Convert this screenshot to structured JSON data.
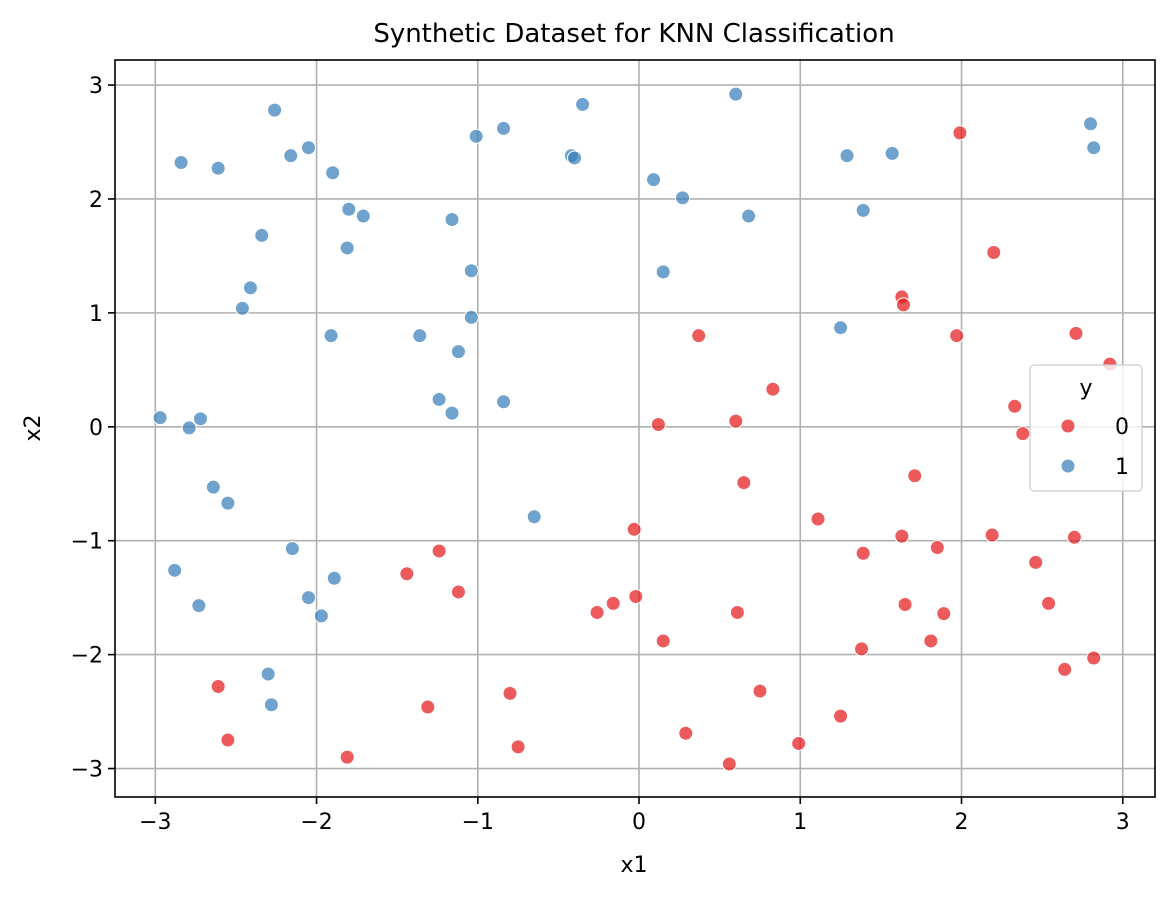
{
  "chart_data": {
    "type": "scatter",
    "title": "Synthetic Dataset for KNN Classification",
    "xlabel": "x1",
    "ylabel": "x2",
    "xlim": [
      -3.25,
      3.2
    ],
    "ylim": [
      -3.25,
      3.22
    ],
    "xticks": [
      -3,
      -2,
      -1,
      0,
      1,
      2,
      3
    ],
    "yticks": [
      -3,
      -2,
      -1,
      0,
      1,
      2,
      3
    ],
    "grid": true,
    "legend": {
      "title": "y",
      "placement": "right"
    },
    "series": [
      {
        "name": "0",
        "color": "#e41a1c",
        "points": [
          [
            1.99,
            2.58
          ],
          [
            2.2,
            1.53
          ],
          [
            1.63,
            1.14
          ],
          [
            1.64,
            1.07
          ],
          [
            2.71,
            0.82
          ],
          [
            1.97,
            0.8
          ],
          [
            0.37,
            0.8
          ],
          [
            2.92,
            0.55
          ],
          [
            0.83,
            0.33
          ],
          [
            2.33,
            0.18
          ],
          [
            2.38,
            -0.06
          ],
          [
            0.12,
            0.02
          ],
          [
            0.6,
            0.05
          ],
          [
            1.71,
            -0.43
          ],
          [
            0.65,
            -0.49
          ],
          [
            1.11,
            -0.81
          ],
          [
            2.19,
            -0.95
          ],
          [
            1.63,
            -0.96
          ],
          [
            2.7,
            -0.97
          ],
          [
            -0.03,
            -0.9
          ],
          [
            1.85,
            -1.06
          ],
          [
            1.39,
            -1.11
          ],
          [
            -1.24,
            -1.09
          ],
          [
            2.46,
            -1.19
          ],
          [
            -1.44,
            -1.29
          ],
          [
            -1.12,
            -1.45
          ],
          [
            2.54,
            -1.55
          ],
          [
            -0.02,
            -1.49
          ],
          [
            -0.16,
            -1.55
          ],
          [
            1.65,
            -1.56
          ],
          [
            -0.26,
            -1.63
          ],
          [
            0.61,
            -1.63
          ],
          [
            1.89,
            -1.64
          ],
          [
            0.15,
            -1.88
          ],
          [
            1.81,
            -1.88
          ],
          [
            1.38,
            -1.95
          ],
          [
            2.64,
            -2.13
          ],
          [
            2.82,
            -2.03
          ],
          [
            -2.61,
            -2.28
          ],
          [
            -0.8,
            -2.34
          ],
          [
            0.75,
            -2.32
          ],
          [
            -1.31,
            -2.46
          ],
          [
            1.25,
            -2.54
          ],
          [
            -2.55,
            -2.75
          ],
          [
            0.29,
            -2.69
          ],
          [
            -0.75,
            -2.81
          ],
          [
            0.99,
            -2.78
          ],
          [
            -1.81,
            -2.9
          ],
          [
            0.56,
            -2.96
          ]
        ]
      },
      {
        "name": "1",
        "color": "#377eb8",
        "points": [
          [
            -2.26,
            2.78
          ],
          [
            -0.35,
            2.83
          ],
          [
            0.6,
            2.92
          ],
          [
            2.8,
            2.66
          ],
          [
            -0.84,
            2.62
          ],
          [
            -1.01,
            2.55
          ],
          [
            -2.05,
            2.45
          ],
          [
            2.82,
            2.45
          ],
          [
            -2.84,
            2.32
          ],
          [
            -2.16,
            2.38
          ],
          [
            -0.42,
            2.38
          ],
          [
            -0.4,
            2.36
          ],
          [
            1.29,
            2.38
          ],
          [
            1.57,
            2.4
          ],
          [
            -2.61,
            2.27
          ],
          [
            -1.9,
            2.23
          ],
          [
            0.09,
            2.17
          ],
          [
            0.27,
            2.01
          ],
          [
            -1.8,
            1.91
          ],
          [
            -1.71,
            1.85
          ],
          [
            -1.16,
            1.82
          ],
          [
            0.68,
            1.85
          ],
          [
            1.39,
            1.9
          ],
          [
            -2.34,
            1.68
          ],
          [
            -1.81,
            1.57
          ],
          [
            -1.04,
            1.37
          ],
          [
            0.15,
            1.36
          ],
          [
            -2.41,
            1.22
          ],
          [
            -2.46,
            1.04
          ],
          [
            -1.04,
            0.96
          ],
          [
            -1.91,
            0.8
          ],
          [
            -1.36,
            0.8
          ],
          [
            1.25,
            0.87
          ],
          [
            -1.12,
            0.66
          ],
          [
            -1.24,
            0.24
          ],
          [
            -0.84,
            0.22
          ],
          [
            -1.16,
            0.12
          ],
          [
            -2.97,
            0.08
          ],
          [
            -2.72,
            0.07
          ],
          [
            -2.79,
            -0.01
          ],
          [
            -2.64,
            -0.53
          ],
          [
            -2.55,
            -0.67
          ],
          [
            -0.65,
            -0.79
          ],
          [
            -2.15,
            -1.07
          ],
          [
            -2.88,
            -1.26
          ],
          [
            -1.89,
            -1.33
          ],
          [
            -2.73,
            -1.57
          ],
          [
            -2.05,
            -1.5
          ],
          [
            -1.97,
            -1.66
          ],
          [
            -2.3,
            -2.17
          ],
          [
            -2.28,
            -2.44
          ]
        ]
      }
    ]
  }
}
